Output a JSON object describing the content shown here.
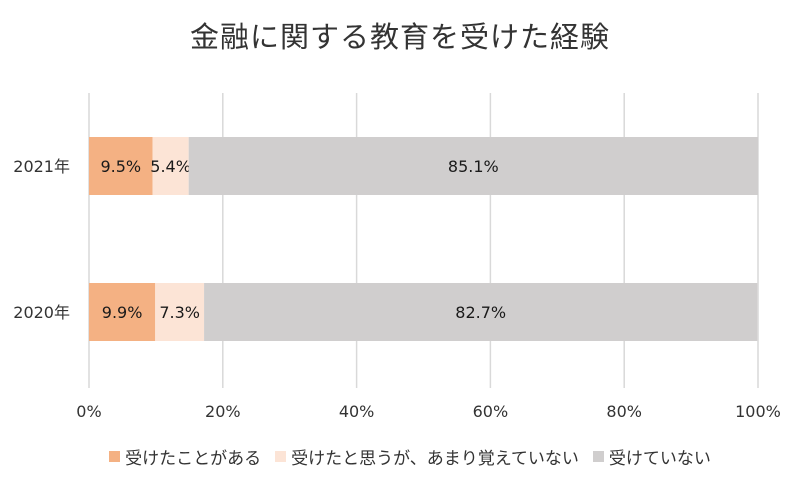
{
  "chart_data": {
    "type": "bar",
    "orientation": "horizontal",
    "stacked": "percent",
    "title": "金融に関する教育を受けた経験",
    "categories": [
      "2021年",
      "2020年"
    ],
    "series": [
      {
        "name": "受けたことがある",
        "values": [
          9.5,
          9.9
        ],
        "color": "#F4B183",
        "labels": [
          "9.5%",
          "9.9%"
        ]
      },
      {
        "name": "受けたと思うが、あまり覚えていない",
        "values": [
          5.4,
          7.3
        ],
        "color": "#FCE4D6",
        "labels": [
          "5.4%",
          "7.3%"
        ]
      },
      {
        "name": "受けていない",
        "values": [
          85.1,
          82.7
        ],
        "color": "#D0CECE",
        "labels": [
          "85.1%",
          "82.7%"
        ]
      }
    ],
    "xlim": [
      0,
      100
    ],
    "x_ticks": [
      "0%",
      "20%",
      "40%",
      "60%",
      "80%",
      "100%"
    ],
    "grid": true,
    "legend_position": "bottom"
  }
}
